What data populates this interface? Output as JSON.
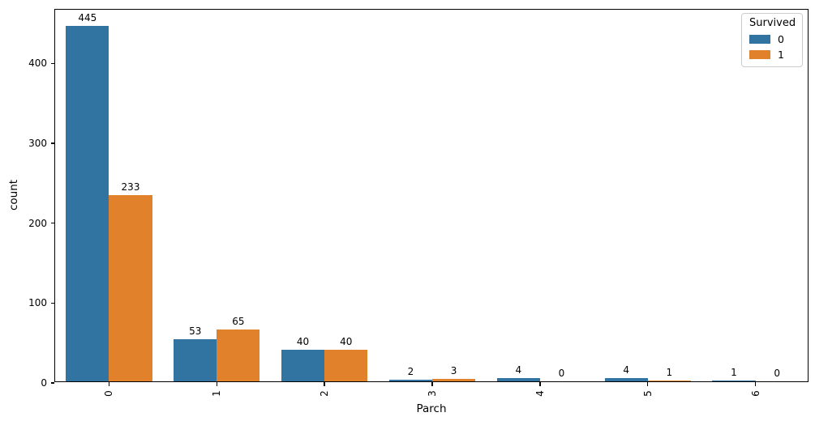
{
  "chart_data": {
    "type": "bar",
    "title": "",
    "xlabel": "Parch",
    "ylabel": "count",
    "categories": [
      "0",
      "1",
      "2",
      "3",
      "4",
      "5",
      "6"
    ],
    "series": [
      {
        "name": "0",
        "color": "#3274a1",
        "values": [
          445,
          53,
          40,
          2,
          4,
          4,
          1
        ]
      },
      {
        "name": "1",
        "color": "#e1812c",
        "values": [
          233,
          65,
          40,
          3,
          0,
          1,
          0
        ]
      }
    ],
    "bar_labels": true,
    "legend": {
      "title": "Survived",
      "position": "upper right"
    },
    "yticks": [
      0,
      100,
      200,
      300,
      400
    ],
    "ylim": [
      0,
      467.25
    ],
    "grid": false,
    "background": "#ffffff",
    "spine_color": "#000000"
  }
}
